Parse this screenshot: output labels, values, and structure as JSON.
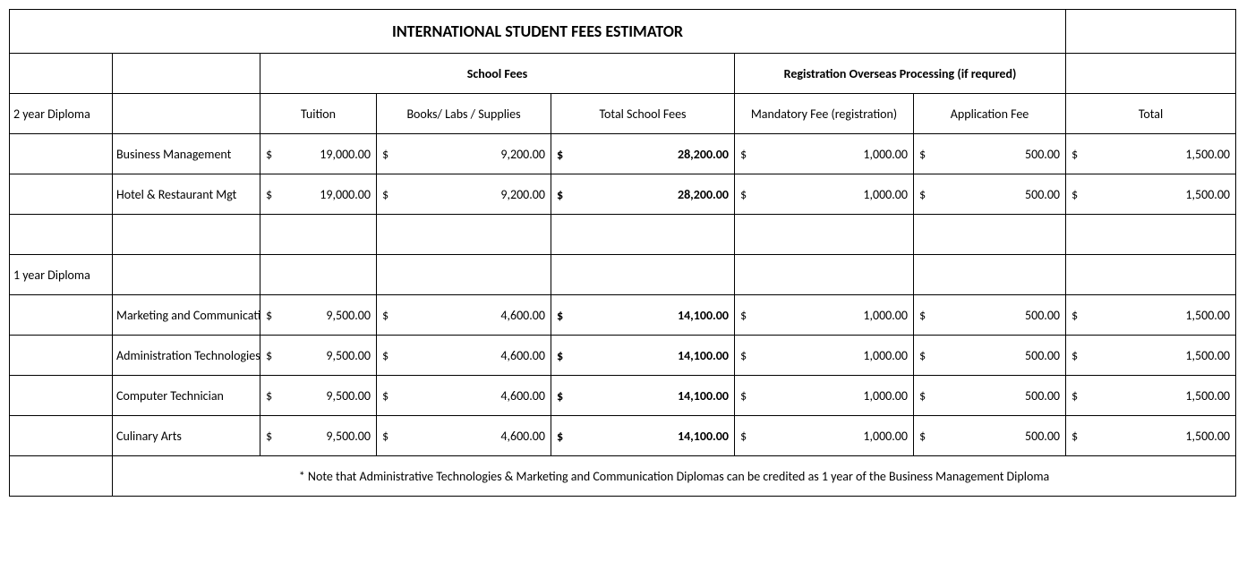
{
  "title": "INTERNATIONAL STUDENT FEES ESTIMATOR",
  "groupHeaders": {
    "school": "School Fees",
    "registration": "Registration Overseas Processing (if requred)"
  },
  "columns": {
    "tuition": "Tuition",
    "books": "Books/ Labs / Supplies",
    "totalSchool": "Total School Fees",
    "mandatory": "Mandatory Fee (registration)",
    "application": "Application Fee",
    "total": "Total"
  },
  "sections": {
    "twoYear": "2 year Diploma",
    "oneYear": "1 year Diploma"
  },
  "programs2yr": [
    {
      "name": "Business Management",
      "tuition": "19,000.00",
      "books": "9,200.00",
      "totalSchool": "28,200.00",
      "mandatory": "1,000.00",
      "application": "500.00",
      "total": "1,500.00"
    },
    {
      "name": "Hotel & Restaurant Mgt",
      "tuition": "19,000.00",
      "books": "9,200.00",
      "totalSchool": "28,200.00",
      "mandatory": "1,000.00",
      "application": "500.00",
      "total": "1,500.00"
    }
  ],
  "programs1yr": [
    {
      "name": "Marketing and Communications",
      "tuition": "9,500.00",
      "books": "4,600.00",
      "totalSchool": "14,100.00",
      "mandatory": "1,000.00",
      "application": "500.00",
      "total": "1,500.00"
    },
    {
      "name": "Administration Technologies",
      "tuition": "9,500.00",
      "books": "4,600.00",
      "totalSchool": "14,100.00",
      "mandatory": "1,000.00",
      "application": "500.00",
      "total": "1,500.00"
    },
    {
      "name": "Computer Technician",
      "tuition": "9,500.00",
      "books": "4,600.00",
      "totalSchool": "14,100.00",
      "mandatory": "1,000.00",
      "application": "500.00",
      "total": "1,500.00"
    },
    {
      "name": "Culinary Arts",
      "tuition": "9,500.00",
      "books": "4,600.00",
      "totalSchool": "14,100.00",
      "mandatory": "1,000.00",
      "application": "500.00",
      "total": "1,500.00"
    }
  ],
  "currency": "$",
  "note": "* Note that Administrative Technologies & Marketing and Communication Diplomas can be credited as 1 year of the Business Management Diploma"
}
